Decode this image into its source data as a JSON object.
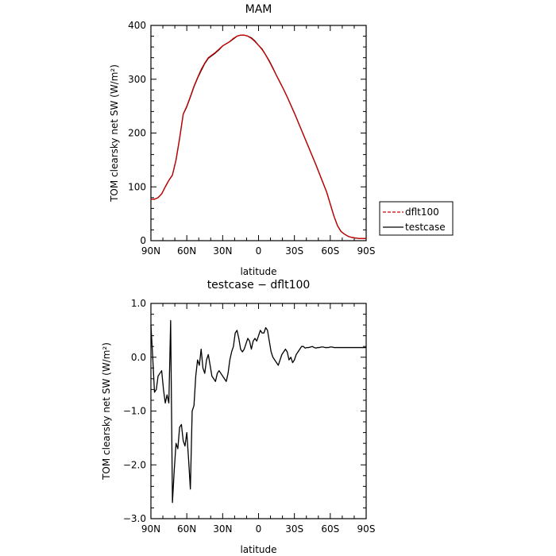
{
  "chart_data": [
    {
      "type": "line",
      "title": "MAM",
      "xlabel": "latitude",
      "ylabel": "TOM clearsky net SW (W/m²)",
      "xlim": [
        90,
        -90
      ],
      "ylim": [
        0,
        400
      ],
      "x_ticks": [
        "90N",
        "60N",
        "30N",
        "0",
        "30S",
        "60S",
        "90S"
      ],
      "y_ticks": [
        "0",
        "100",
        "200",
        "300",
        "400"
      ],
      "grid": false,
      "legend": {
        "placement": "right",
        "entries": [
          {
            "name": "dflt100",
            "color": "#cc0000",
            "dash": "dashed"
          },
          {
            "name": "testcase",
            "color": "#000000",
            "dash": "solid"
          }
        ]
      },
      "series": [
        {
          "name": "dflt100",
          "color": "#cc0000",
          "x": [
            90,
            87,
            84,
            81,
            78,
            75,
            72,
            69,
            66,
            63,
            60,
            57,
            54,
            51,
            48,
            45,
            42,
            39,
            36,
            33,
            30,
            27,
            24,
            21,
            18,
            15,
            12,
            9,
            6,
            3,
            0,
            -3,
            -6,
            -9,
            -12,
            -15,
            -18,
            -21,
            -24,
            -27,
            -30,
            -33,
            -36,
            -39,
            -42,
            -45,
            -48,
            -51,
            -54,
            -57,
            -60,
            -63,
            -66,
            -69,
            -72,
            -75,
            -78,
            -81,
            -84,
            -87,
            -90
          ],
          "values": [
            77,
            77,
            80,
            87,
            100,
            112,
            122,
            150,
            190,
            235,
            250,
            268,
            287,
            303,
            318,
            330,
            340,
            345,
            350,
            356,
            362,
            366,
            370,
            376,
            380,
            382,
            382,
            380,
            376,
            370,
            363,
            355,
            345,
            333,
            320,
            307,
            294,
            281,
            267,
            252,
            237,
            221,
            205,
            189,
            173,
            157,
            141,
            124,
            107,
            90,
            68,
            46,
            28,
            17,
            12,
            8,
            6,
            5,
            4,
            4,
            4
          ]
        },
        {
          "name": "testcase",
          "color": "#000000",
          "x": [
            90,
            87,
            84,
            81,
            78,
            75,
            72,
            69,
            66,
            63,
            60,
            57,
            54,
            51,
            48,
            45,
            42,
            39,
            36,
            33,
            30,
            27,
            24,
            21,
            18,
            15,
            12,
            9,
            6,
            3,
            0,
            -3,
            -6,
            -9,
            -12,
            -15,
            -18,
            -21,
            -24,
            -27,
            -30,
            -33,
            -36,
            -39,
            -42,
            -45,
            -48,
            -51,
            -54,
            -57,
            -60,
            -63,
            -66,
            -69,
            -72,
            -75,
            -78,
            -81,
            -84,
            -87,
            -90
          ],
          "values": [
            77,
            77,
            80,
            87,
            100,
            112,
            122,
            150,
            190,
            235,
            249,
            267,
            286,
            302,
            316,
            329,
            339,
            344,
            349,
            355,
            362,
            366,
            370,
            375,
            380,
            382,
            382,
            380,
            377,
            371,
            363,
            356,
            345,
            334,
            321,
            307,
            294,
            281,
            267,
            252,
            237,
            221,
            205,
            189,
            173,
            157,
            141,
            124,
            107,
            90,
            68,
            46,
            28,
            17,
            12,
            8,
            6,
            5,
            4,
            4,
            4
          ]
        }
      ]
    },
    {
      "type": "line",
      "title": "testcase − dflt100",
      "xlabel": "latitude",
      "ylabel": "TOM clearsky net SW (W/m²)",
      "xlim": [
        90,
        -90
      ],
      "ylim": [
        -3.0,
        1.0
      ],
      "x_ticks": [
        "90N",
        "60N",
        "30N",
        "0",
        "30S",
        "60S",
        "90S"
      ],
      "y_ticks": [
        "−3.0",
        "−2.0",
        "−1.0",
        "0.0",
        "1.0"
      ],
      "grid": false,
      "series": [
        {
          "name": "",
          "color": "#000000",
          "x": [
            90,
            88.5,
            87,
            85.5,
            84,
            82.5,
            81,
            79.5,
            78,
            76.5,
            75,
            73.5,
            72,
            70.5,
            69,
            67.5,
            66,
            64.5,
            63,
            61.5,
            60,
            58.5,
            57,
            55.5,
            54,
            52.5,
            51,
            49.5,
            48,
            46.5,
            45,
            43.5,
            42,
            40.5,
            39,
            37.5,
            36,
            34.5,
            33,
            31.5,
            30,
            28.5,
            27,
            25.5,
            24,
            22.5,
            21,
            19.5,
            18,
            16.5,
            15,
            13.5,
            12,
            10.5,
            9,
            7.5,
            6,
            4.5,
            3,
            1.5,
            0,
            -1.5,
            -3,
            -4.5,
            -6,
            -7.5,
            -9,
            -10.5,
            -12,
            -13.5,
            -15,
            -16.5,
            -18,
            -19.5,
            -21,
            -22.5,
            -24,
            -25.5,
            -27,
            -28.5,
            -30,
            -31.5,
            -33,
            -34.5,
            -36,
            -37.5,
            -39,
            -40.5,
            -42,
            -43.5,
            -45,
            -46.5,
            -48,
            -49.5,
            -51,
            -52.5,
            -54,
            -55.5,
            -57,
            -58.5,
            -60,
            -61.5,
            -63,
            -64.5,
            -66,
            -67.5,
            -69,
            -70.5,
            -72,
            -73.5,
            -75,
            -76.5,
            -78,
            -79.5,
            -81,
            -82.5,
            -84,
            -85.5,
            -87,
            -88.5,
            -90
          ],
          "values": [
            0.6,
            0.0,
            -0.65,
            -0.6,
            -0.35,
            -0.3,
            -0.25,
            -0.6,
            -0.85,
            -0.7,
            -0.85,
            0.68,
            -2.7,
            -2.1,
            -1.6,
            -1.7,
            -1.3,
            -1.25,
            -1.55,
            -1.65,
            -1.4,
            -1.9,
            -2.45,
            -1.0,
            -0.9,
            -0.35,
            -0.05,
            -0.15,
            0.15,
            -0.2,
            -0.3,
            -0.05,
            0.05,
            -0.15,
            -0.35,
            -0.4,
            -0.45,
            -0.3,
            -0.25,
            -0.3,
            -0.35,
            -0.4,
            -0.45,
            -0.3,
            -0.05,
            0.1,
            0.2,
            0.45,
            0.5,
            0.35,
            0.15,
            0.1,
            0.15,
            0.25,
            0.35,
            0.3,
            0.15,
            0.3,
            0.35,
            0.3,
            0.4,
            0.5,
            0.45,
            0.45,
            0.55,
            0.5,
            0.3,
            0.1,
            0.0,
            -0.05,
            -0.1,
            -0.15,
            -0.05,
            0.05,
            0.1,
            0.15,
            0.1,
            -0.05,
            0.0,
            -0.1,
            -0.05,
            0.05,
            0.1,
            0.15,
            0.2,
            0.2,
            0.17,
            0.18,
            0.18,
            0.19,
            0.2,
            0.18,
            0.17,
            0.18,
            0.18,
            0.19,
            0.19,
            0.18,
            0.18,
            0.18,
            0.19,
            0.19,
            0.18,
            0.18,
            0.18,
            0.18,
            0.18,
            0.18,
            0.18,
            0.18,
            0.18,
            0.18,
            0.18,
            0.18,
            0.18,
            0.18,
            0.18,
            0.18,
            0.18,
            0.18,
            0.18
          ]
        }
      ]
    }
  ]
}
